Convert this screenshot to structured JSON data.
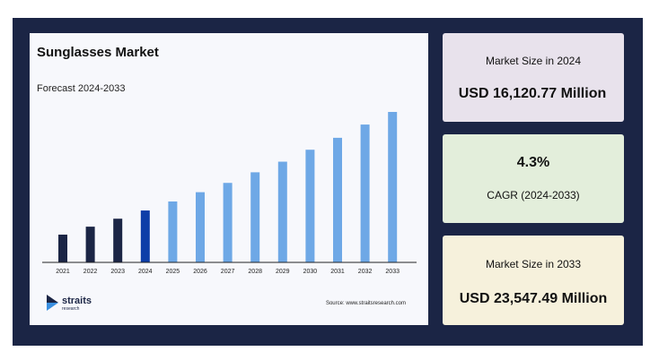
{
  "chart_data": {
    "type": "bar",
    "title": "Sunglasses Market",
    "subtitle": "Forecast 2024-2033",
    "categories": [
      "2021",
      "2022",
      "2023",
      "2024",
      "2025",
      "2026",
      "2027",
      "2028",
      "2029",
      "2030",
      "2031",
      "2032",
      "2033"
    ],
    "values": [
      14.3,
      14.9,
      15.5,
      16.12,
      16.8,
      17.5,
      18.2,
      19.0,
      19.8,
      20.7,
      21.6,
      22.6,
      23.55
    ],
    "bar_colors": [
      "#1b2545",
      "#1b2545",
      "#1b2545",
      "#0d3ea8",
      "#6ea8e6",
      "#6ea8e6",
      "#6ea8e6",
      "#6ea8e6",
      "#6ea8e6",
      "#6ea8e6",
      "#6ea8e6",
      "#6ea8e6",
      "#6ea8e6"
    ],
    "grid": false
  },
  "branding": {
    "logo_text": "straits",
    "logo_subtext": "research",
    "source": "Source: www.straitsresearch.com"
  },
  "cards": {
    "size_2024": {
      "label": "Market Size in 2024",
      "value": "USD 16,120.77 Million"
    },
    "cagr": {
      "value": "4.3%",
      "label": "CAGR (2024-2033)"
    },
    "size_2033": {
      "label": "Market Size in 2033",
      "value": "USD 23,547.49 Million"
    }
  },
  "colors": {
    "frame": "#1b2545",
    "historical": "#1b2545",
    "base_year": "#0d3ea8",
    "forecast": "#6ea8e6"
  }
}
